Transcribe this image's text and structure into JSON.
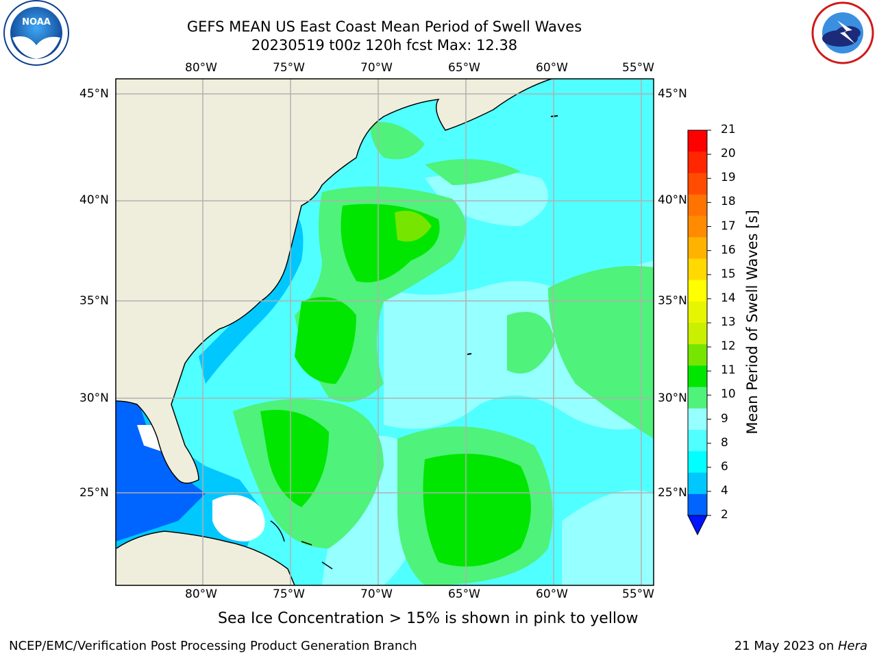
{
  "header": {
    "title": "GEFS MEAN US East Coast Mean Period of Swell Waves",
    "subtitle": "20230519 t00z 120h fcst   Max: 12.38"
  },
  "logos": {
    "left": "NOAA",
    "right": "NATIONAL WEATHER SERVICE"
  },
  "map": {
    "lon_ticks_top": [
      "80°W",
      "75°W",
      "70°W",
      "65°W",
      "60°W",
      "55°W"
    ],
    "lon_ticks_bottom": [
      "80°W",
      "75°W",
      "70°W",
      "65°W",
      "60°W",
      "55°W"
    ],
    "lat_ticks_left": [
      "45°N",
      "40°N",
      "35°N",
      "30°N",
      "25°N"
    ],
    "lat_ticks_right": [
      "45°N",
      "40°N",
      "35°N",
      "30°N",
      "25°N"
    ],
    "extent": {
      "lon_min": -85,
      "lon_max": -54.3,
      "lat_min": 20.5,
      "lat_max": 45.8
    },
    "colors": {
      "land": "#efeedc",
      "grid": "#b0b0b0",
      "coast": "#000000"
    }
  },
  "colorbar": {
    "label": "Mean Period of Swell Waves [s]",
    "ticks": [
      "21",
      "20",
      "19",
      "18",
      "17",
      "16",
      "15",
      "14",
      "13",
      "12",
      "11",
      "10",
      "9",
      "8",
      "6",
      "4",
      "2"
    ],
    "colors_top_to_bottom": [
      "#ff0000",
      "#ff2600",
      "#ff4c00",
      "#ff7300",
      "#ff8c00",
      "#ffb300",
      "#ffd900",
      "#ffff00",
      "#e6f500",
      "#c8f000",
      "#76e600",
      "#00e600",
      "#4ff27a",
      "#96ffff",
      "#50ffff",
      "#00ffff",
      "#00c8ff",
      "#0064ff"
    ],
    "extend_color": "#0014ff"
  },
  "notes": {
    "ice": "Sea Ice Concentration > 15% is shown in pink to yellow"
  },
  "footer": {
    "left": "NCEP/EMC/Verification Post Processing Product Generation Branch",
    "right_prefix": "21 May 2023 on ",
    "right_host": "Hera"
  }
}
